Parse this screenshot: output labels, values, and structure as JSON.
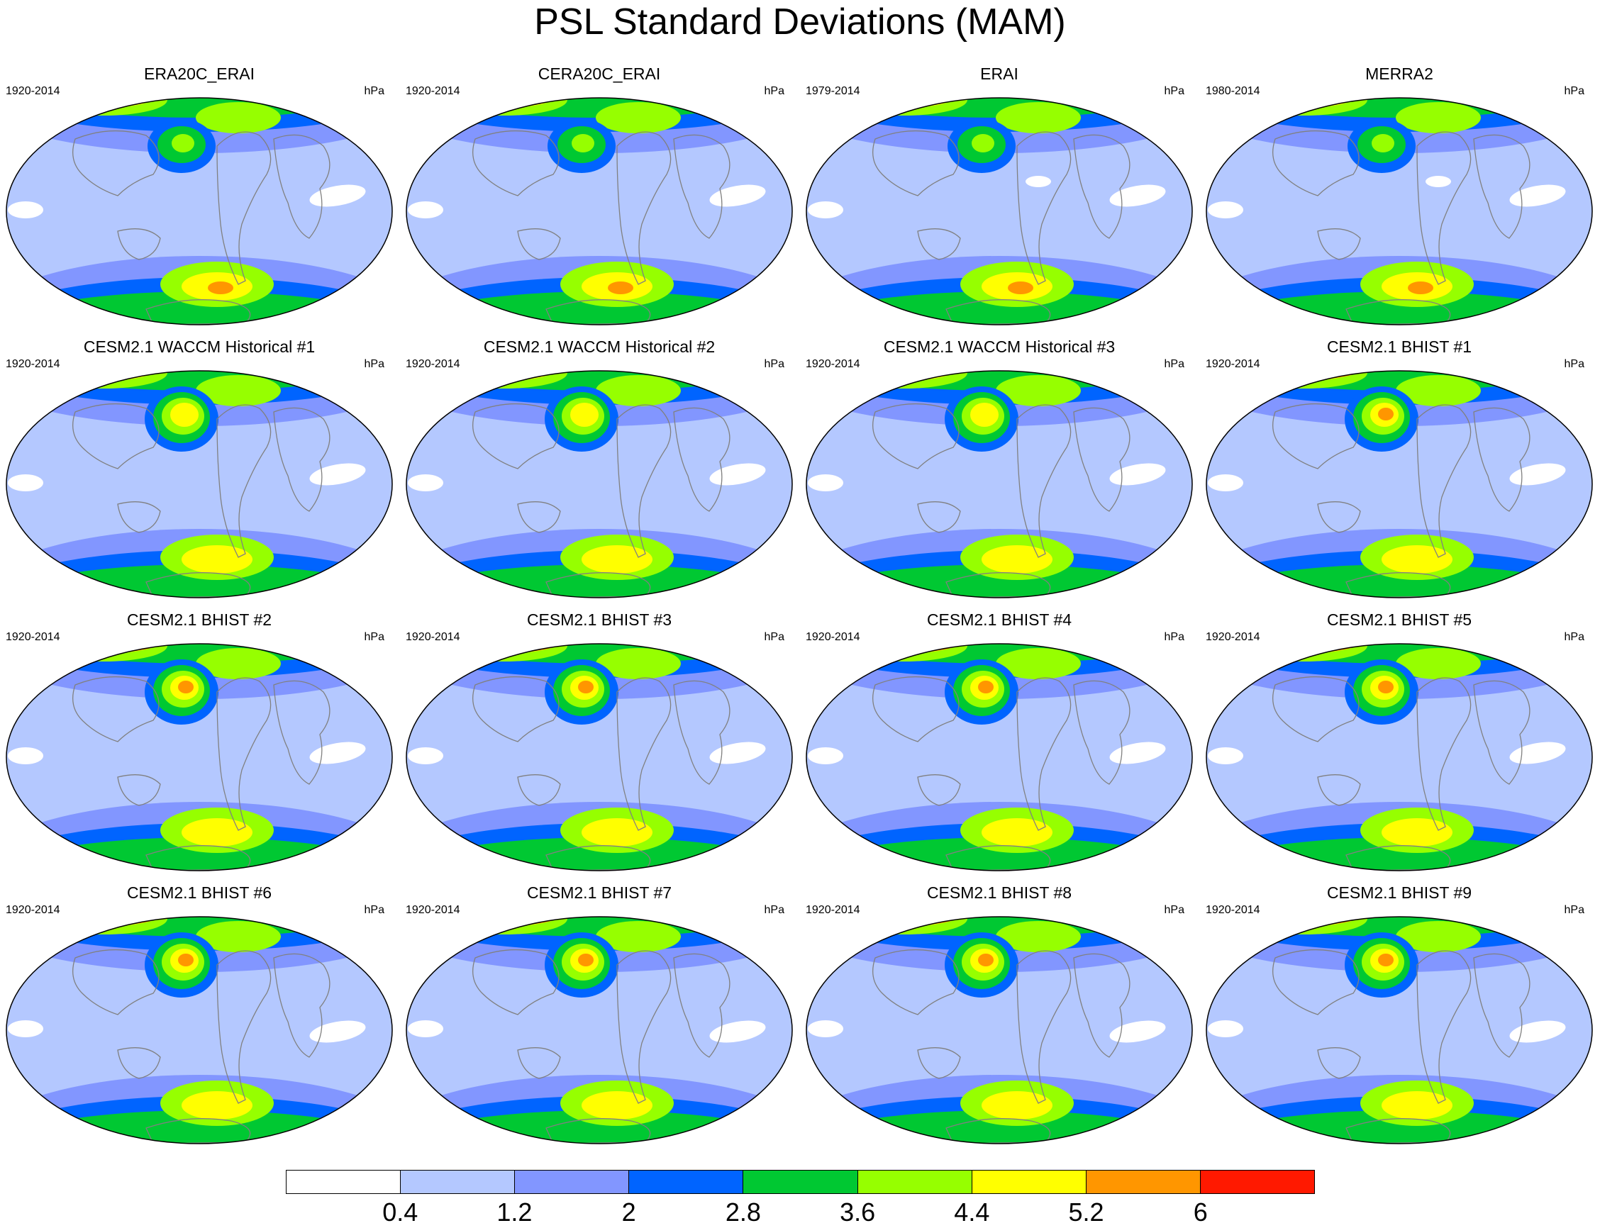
{
  "title": "PSL Standard Deviations (MAM)",
  "units": "hPa",
  "panels": [
    {
      "title": "ERA20C_ERAI",
      "years": "1920-2014"
    },
    {
      "title": "CERA20C_ERAI",
      "years": "1920-2014"
    },
    {
      "title": "ERAI",
      "years": "1979-2014"
    },
    {
      "title": "MERRA2",
      "years": "1980-2014"
    },
    {
      "title": "CESM2.1 WACCM Historical #1",
      "years": "1920-2014"
    },
    {
      "title": "CESM2.1 WACCM Historical #2",
      "years": "1920-2014"
    },
    {
      "title": "CESM2.1 WACCM Historical #3",
      "years": "1920-2014"
    },
    {
      "title": "CESM2.1 BHIST #1",
      "years": "1920-2014"
    },
    {
      "title": "CESM2.1 BHIST #2",
      "years": "1920-2014"
    },
    {
      "title": "CESM2.1 BHIST #3",
      "years": "1920-2014"
    },
    {
      "title": "CESM2.1 BHIST #4",
      "years": "1920-2014"
    },
    {
      "title": "CESM2.1 BHIST #5",
      "years": "1920-2014"
    },
    {
      "title": "CESM2.1 BHIST #6",
      "years": "1920-2014"
    },
    {
      "title": "CESM2.1 BHIST #7",
      "years": "1920-2014"
    },
    {
      "title": "CESM2.1 BHIST #8",
      "years": "1920-2014"
    },
    {
      "title": "CESM2.1 BHIST #9",
      "years": "1920-2014"
    }
  ],
  "colorbar": {
    "labels": [
      "0.4",
      "1.2",
      "2",
      "2.8",
      "3.6",
      "4.4",
      "5.2",
      "6"
    ],
    "colors": [
      "#ffffff",
      "#b4c8ff",
      "#8296ff",
      "#0064ff",
      "#00c832",
      "#96ff00",
      "#ffff00",
      "#ff9600",
      "#ff1900"
    ]
  },
  "colors": {
    "land_outline": "#808080",
    "map_border": "#000000"
  }
}
